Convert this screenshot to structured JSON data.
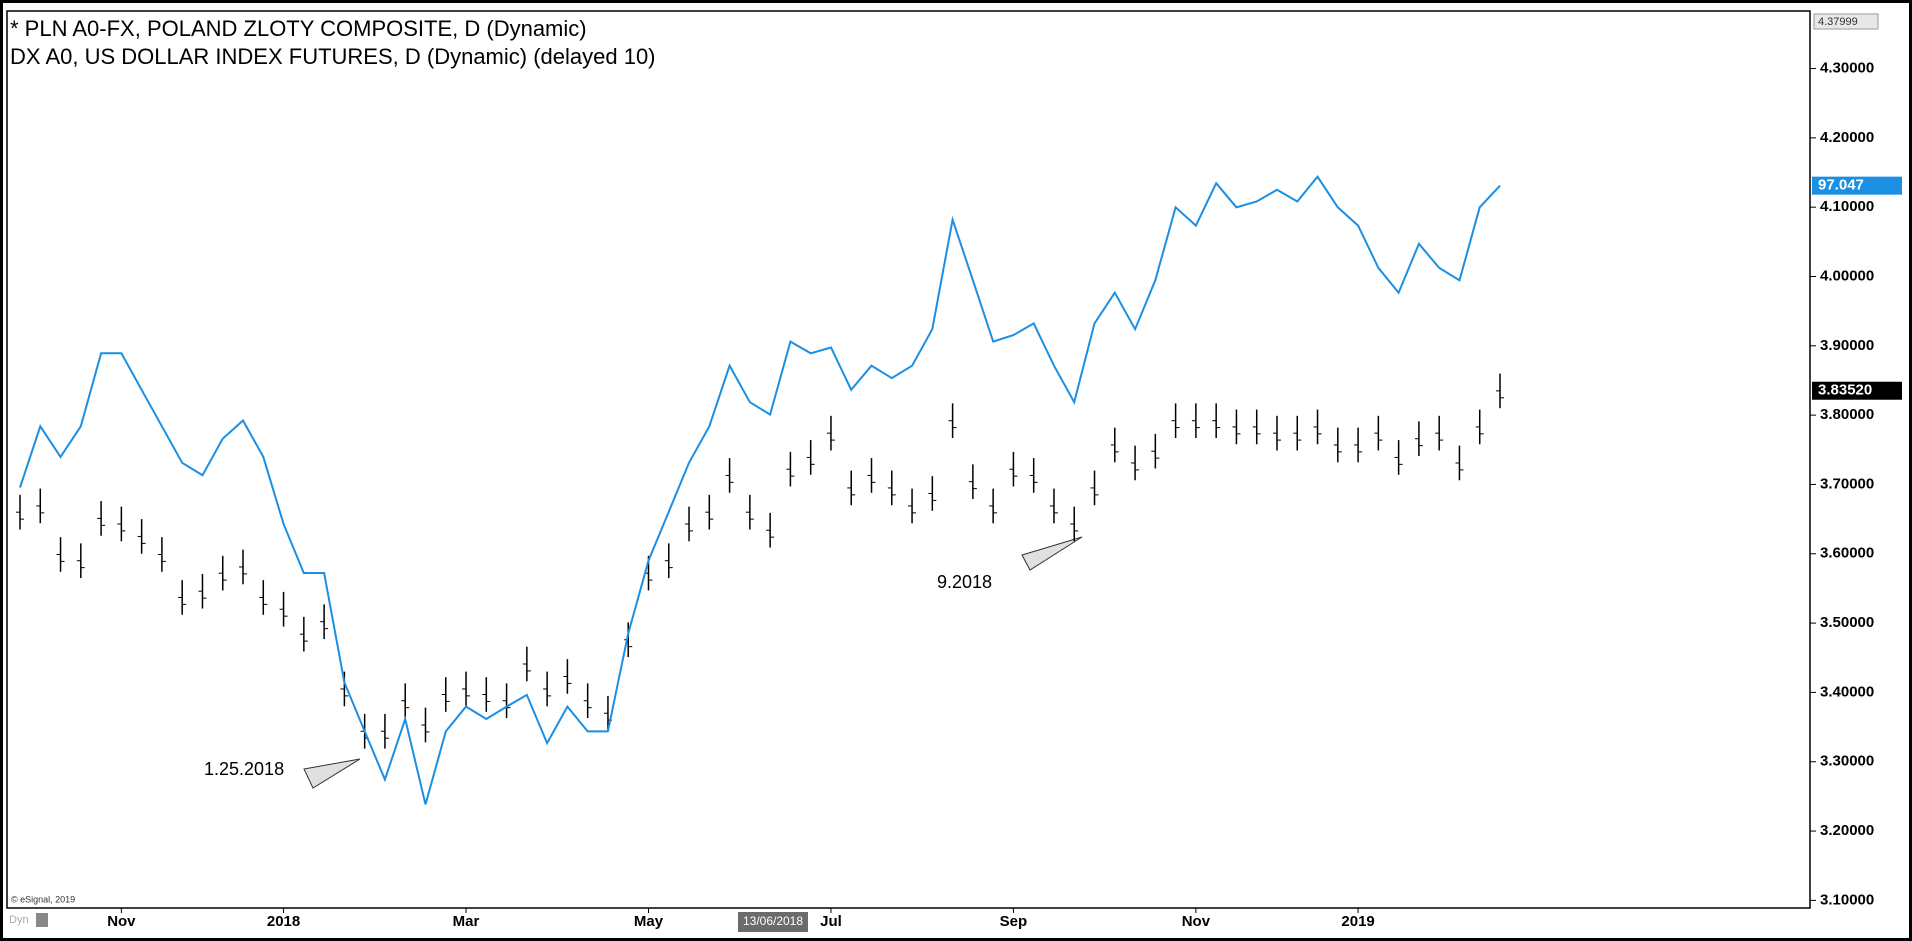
{
  "chart_data": {
    "type": "ohlc_line",
    "title_lines": [
      "* PLN A0-FX, POLAND ZLOTY COMPOSITE, D (Dynamic)",
      "DX A0, US DOLLAR INDEX FUTURES, D (Dynamic) (delayed 10)"
    ],
    "copyright": "© eSignal, 2019",
    "mode_label": "Dyn",
    "cursor_label": "13/06/2018",
    "categories": [
      null,
      null,
      null,
      null,
      null,
      "Nov",
      null,
      null,
      null,
      null,
      null,
      null,
      null,
      "2018",
      null,
      null,
      null,
      null,
      null,
      null,
      null,
      null,
      "Mar",
      null,
      null,
      null,
      null,
      null,
      null,
      null,
      null,
      "May",
      null,
      null,
      null,
      null,
      null,
      null,
      null,
      null,
      "Jul",
      null,
      null,
      null,
      null,
      null,
      null,
      null,
      null,
      "Sep",
      null,
      null,
      null,
      null,
      null,
      null,
      null,
      null,
      "Nov",
      null,
      null,
      null,
      null,
      null,
      null,
      null,
      "2019",
      null,
      null,
      null,
      null,
      null,
      null,
      null
    ],
    "ylim": [
      3.089,
      4.383
    ],
    "yticks": [
      {
        "value": 3.1,
        "label": "3.10000"
      },
      {
        "value": 3.2,
        "label": "3.20000"
      },
      {
        "value": 3.3,
        "label": "3.30000"
      },
      {
        "value": 3.4,
        "label": "3.40000"
      },
      {
        "value": 3.5,
        "label": "3.50000"
      },
      {
        "value": 3.6,
        "label": "3.60000"
      },
      {
        "value": 3.7,
        "label": "3.70000"
      },
      {
        "value": 3.8,
        "label": "3.80000"
      },
      {
        "value": 3.9,
        "label": "3.90000"
      },
      {
        "value": 4.0,
        "label": "4.00000"
      },
      {
        "value": 4.1,
        "label": "4.10000"
      },
      {
        "value": 4.2,
        "label": "4.20000"
      },
      {
        "value": 4.3,
        "label": "4.30000"
      }
    ],
    "ymax_label": {
      "value": 4.37999,
      "label": "4.37999"
    },
    "y2lim": [
      87.15,
      99.44
    ],
    "series": [
      {
        "name": "PLN A0-FX",
        "color": "#000000",
        "kind": "bars",
        "high": [
          3.685,
          3.694,
          3.624,
          3.615,
          3.676,
          3.668,
          3.65,
          3.624,
          3.562,
          3.571,
          3.597,
          3.606,
          3.562,
          3.545,
          3.509,
          3.527,
          3.43,
          3.369,
          3.369,
          3.413,
          3.378,
          3.422,
          3.43,
          3.422,
          3.413,
          3.466,
          3.43,
          3.448,
          3.413,
          3.395,
          3.501,
          3.597,
          3.615,
          3.668,
          3.685,
          3.738,
          3.685,
          3.659,
          3.747,
          3.764,
          3.799,
          3.72,
          3.738,
          3.72,
          3.694,
          3.712,
          3.817,
          3.729,
          3.694,
          3.747,
          3.738,
          3.694,
          3.668,
          3.72,
          3.782,
          3.756,
          3.773,
          3.817,
          3.817,
          3.817,
          3.808,
          3.808,
          3.799,
          3.799,
          3.808,
          3.782,
          3.782,
          3.799,
          3.764,
          3.791,
          3.799,
          3.756,
          3.808,
          3.86
        ],
        "low": [
          3.635,
          3.644,
          3.574,
          3.565,
          3.626,
          3.618,
          3.6,
          3.574,
          3.512,
          3.521,
          3.547,
          3.556,
          3.512,
          3.495,
          3.459,
          3.477,
          3.38,
          3.319,
          3.319,
          3.363,
          3.328,
          3.372,
          3.38,
          3.372,
          3.363,
          3.416,
          3.38,
          3.398,
          3.363,
          3.345,
          3.451,
          3.547,
          3.565,
          3.618,
          3.635,
          3.688,
          3.635,
          3.609,
          3.697,
          3.714,
          3.749,
          3.67,
          3.688,
          3.67,
          3.644,
          3.662,
          3.767,
          3.679,
          3.644,
          3.697,
          3.688,
          3.644,
          3.618,
          3.67,
          3.732,
          3.706,
          3.723,
          3.767,
          3.767,
          3.767,
          3.758,
          3.758,
          3.749,
          3.749,
          3.758,
          3.732,
          3.732,
          3.749,
          3.714,
          3.741,
          3.749,
          3.706,
          3.758,
          3.81
        ],
        "last_price": {
          "value": 3.8352,
          "label": "3.83520"
        }
      },
      {
        "name": "DX A0",
        "color": "#1a8fe3",
        "kind": "line",
        "axis": "y2",
        "values": [
          92.91,
          93.75,
          93.33,
          93.75,
          94.75,
          94.75,
          94.25,
          93.75,
          93.25,
          93.08,
          93.58,
          93.83,
          93.33,
          92.41,
          91.74,
          91.74,
          90.24,
          89.57,
          88.91,
          89.74,
          88.57,
          89.57,
          89.91,
          89.74,
          89.91,
          90.07,
          89.41,
          89.91,
          89.57,
          89.57,
          90.91,
          91.91,
          92.58,
          93.25,
          93.75,
          94.58,
          94.08,
          93.91,
          94.91,
          94.75,
          94.83,
          94.25,
          94.58,
          94.41,
          94.58,
          95.08,
          96.58,
          95.75,
          94.91,
          95.0,
          95.16,
          94.58,
          94.08,
          95.16,
          95.58,
          95.08,
          95.75,
          96.75,
          96.5,
          97.08,
          96.75,
          96.83,
          96.99,
          96.83,
          97.17,
          96.75,
          96.5,
          95.92,
          95.58,
          96.25,
          95.92,
          95.75,
          96.75,
          97.047
        ],
        "last_price": {
          "value": 97.047,
          "label": "97.047"
        }
      }
    ],
    "annotations": [
      "1.25.2018",
      "9.2018"
    ]
  }
}
